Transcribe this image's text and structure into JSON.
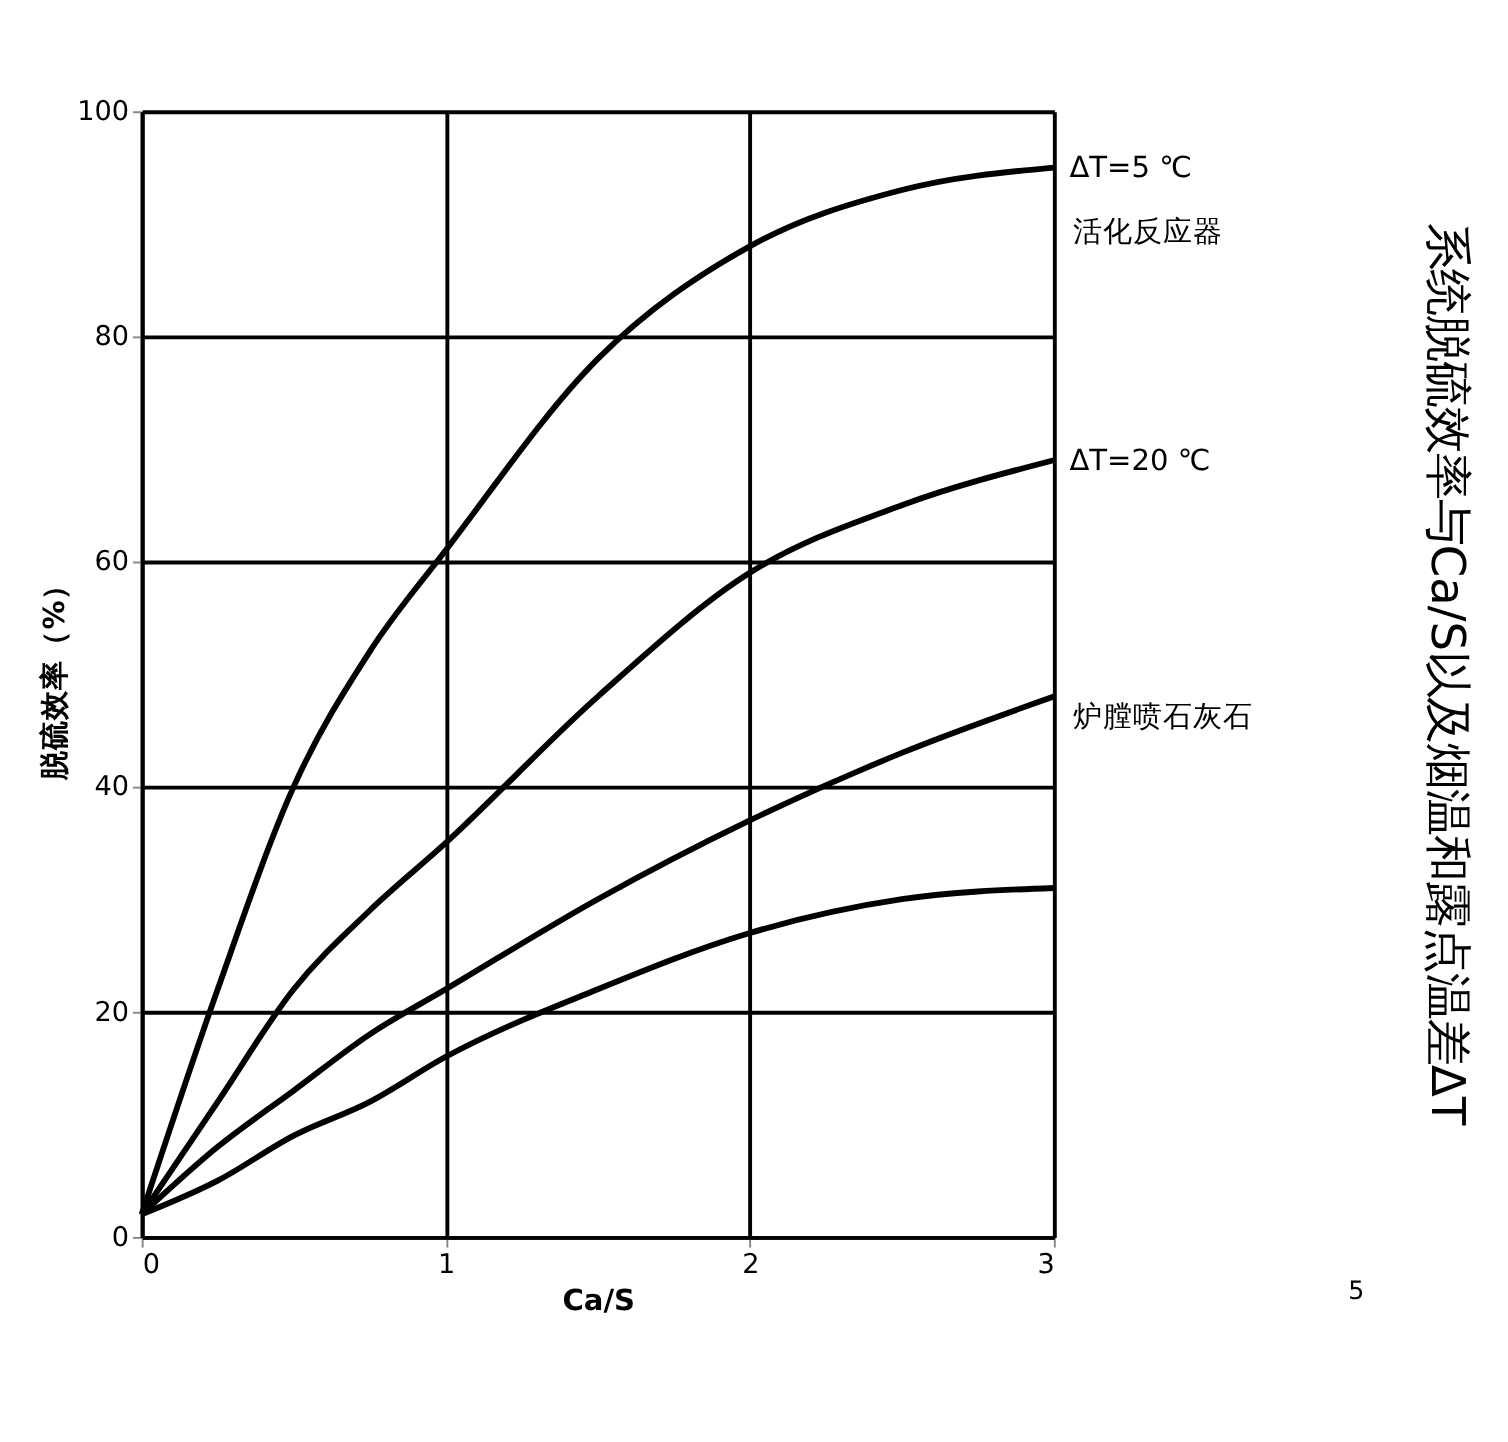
{
  "chart_data": {
    "type": "line",
    "title": "系统脱硫效率与Ca/S以及烟温和露点温差ΔT",
    "xlabel": "Ca/S",
    "ylabel": "脱硫效率（%）",
    "x": [
      0,
      0.25,
      0.5,
      0.75,
      1,
      1.5,
      2,
      2.5,
      3
    ],
    "series": [
      {
        "name": "ΔT=5 ℃",
        "color": "#000000",
        "values": [
          2,
          22,
          40,
          52,
          61,
          78,
          88,
          93,
          95
        ]
      },
      {
        "name": "ΔT=20 ℃",
        "color": "#000000",
        "values": [
          2,
          12,
          22,
          29,
          35,
          48,
          59,
          65,
          69
        ]
      },
      {
        "color": "#000000",
        "values": [
          2,
          8,
          13,
          18,
          22,
          30,
          37,
          43,
          48
        ]
      },
      {
        "color": "#000000",
        "values": [
          2,
          5,
          9,
          12,
          16,
          22,
          27,
          30,
          31
        ]
      }
    ],
    "annotations": [
      "活化反应器",
      "炉膛喷石灰石",
      "5"
    ],
    "xlim": [
      0,
      3
    ],
    "ylim": [
      0,
      100
    ],
    "xticks": [
      0,
      1,
      2,
      3
    ],
    "yticks": [
      0,
      20,
      40,
      60,
      80,
      100
    ],
    "grid": true,
    "marker": "none",
    "line_style": "solid"
  }
}
